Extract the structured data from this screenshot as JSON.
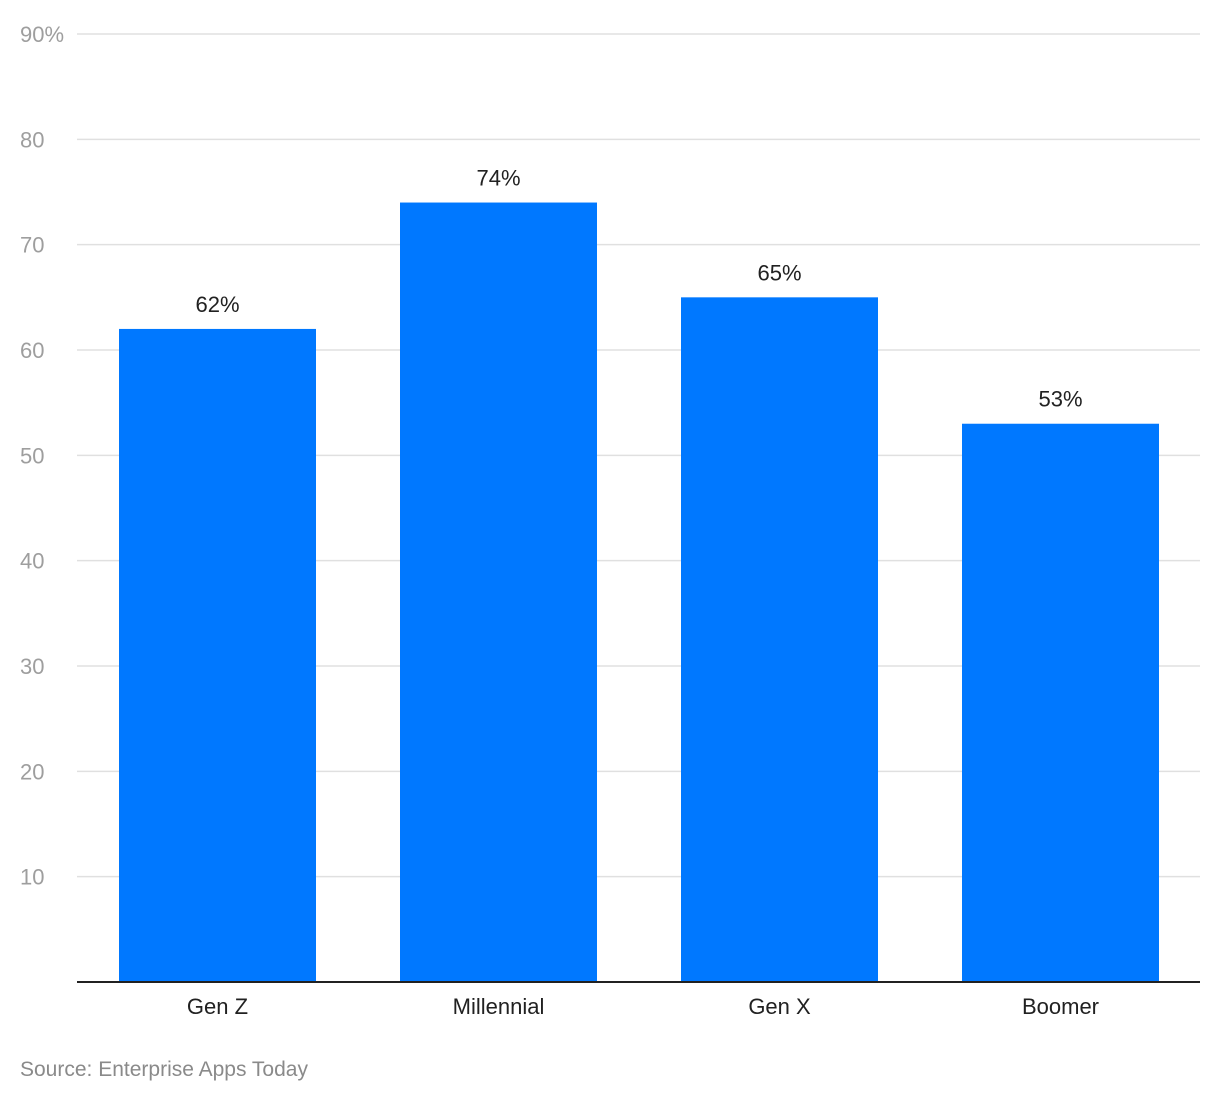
{
  "chart_data": {
    "type": "bar",
    "categories": [
      "Gen Z",
      "Millennial",
      "Gen X",
      "Boomer"
    ],
    "values": [
      62,
      74,
      65,
      53
    ],
    "data_labels": [
      "62%",
      "74%",
      "65%",
      "53%"
    ],
    "y_ticks": [
      10,
      20,
      30,
      40,
      50,
      60,
      70,
      80,
      90
    ],
    "y_tick_labels": [
      "10",
      "20",
      "30",
      "40",
      "50",
      "60",
      "70",
      "80",
      "90%"
    ],
    "ylim": [
      0,
      90
    ],
    "title": "",
    "xlabel": "",
    "ylabel": "",
    "grid": true,
    "legend": "none",
    "bar_color": "#0078ff",
    "grid_color": "#e0e0e0",
    "axis_color": "#212121"
  },
  "source": "Source: Enterprise Apps Today"
}
